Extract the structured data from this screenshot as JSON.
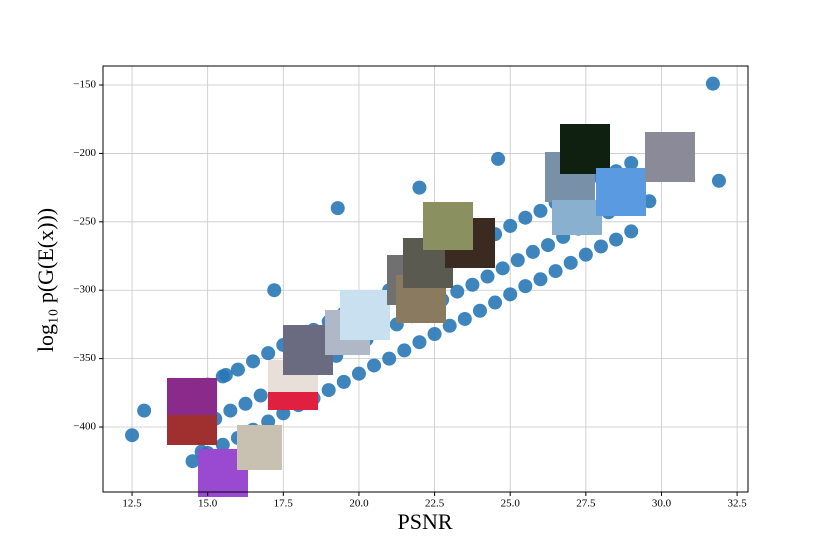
{
  "chart_data": {
    "type": "scatter",
    "x_label": "PSNR",
    "y_label": "log₁₀ p(G(E(x)))",
    "color": "#2878b5",
    "grid": true,
    "xlim": [
      11.54,
      32.86
    ],
    "ylim": [
      -447.5,
      -136.1
    ],
    "xticks": [
      12.5,
      {
        "value": 15,
        "label": "15.0"
      },
      17.5,
      {
        "value": 20,
        "label": "20.0"
      },
      22.5,
      {
        "value": 25,
        "label": "25.0"
      },
      27.5,
      {
        "value": 30,
        "label": "30.0"
      },
      32.5
    ],
    "yticks": [
      {
        "value": -150,
        "label": "−150"
      },
      {
        "value": -200,
        "label": "−200"
      },
      {
        "value": -250,
        "label": "−250"
      },
      {
        "value": -300,
        "label": "−300"
      },
      {
        "value": -350,
        "label": "−350"
      },
      {
        "value": -400,
        "label": "−400"
      }
    ],
    "x": [
      14.5,
      14.75,
      14.5,
      15,
      15.25,
      15,
      15.5,
      15.75,
      15.5,
      16,
      16.25,
      16,
      16.5,
      16.75,
      16.5,
      17,
      17.25,
      17,
      17.5,
      17.75,
      17.5,
      18,
      18.25,
      18,
      18.5,
      18.75,
      18.5,
      19,
      19.25,
      19,
      19.5,
      19.75,
      19.5,
      20,
      20.25,
      20,
      20.5,
      20.75,
      20.5,
      21,
      21.25,
      21,
      21.5,
      21.75,
      21.5,
      22,
      22.25,
      22,
      22.5,
      22.75,
      22.5,
      23,
      23.25,
      23,
      23.5,
      23.75,
      23.5,
      24,
      24.25,
      24,
      24.5,
      24.75,
      24.5,
      25,
      25.25,
      25,
      25.5,
      25.75,
      25.5,
      26,
      26.25,
      26,
      26.5,
      26.75,
      26.5,
      27,
      27.25,
      27,
      27.5,
      27.75,
      27.5,
      28,
      28.25,
      28,
      28.5,
      28.75,
      28.5,
      29,
      29.25,
      29,
      12.5,
      12.9,
      31.7,
      31.9,
      24.6,
      19.3,
      14.8,
      15.6,
      17.2,
      22.0,
      29.6
    ],
    "values": [
      -425,
      -400,
      -375,
      -419,
      -394,
      -369,
      -413,
      -388,
      -363,
      -408,
      -383,
      -358,
      -402,
      -377,
      -352,
      -396,
      -371,
      -346,
      -390,
      -365,
      -340,
      -384,
      -359,
      -334,
      -379,
      -354,
      -329,
      -373,
      -348,
      -323,
      -367,
      -342,
      -317,
      -361,
      -336,
      -311,
      -355,
      -330,
      -305,
      -350,
      -325,
      -300,
      -344,
      -319,
      -294,
      -338,
      -313,
      -288,
      -332,
      -307,
      -282,
      -326,
      -301,
      -276,
      -321,
      -296,
      -271,
      -315,
      -290,
      -265,
      -309,
      -284,
      -259,
      -303,
      -278,
      -253,
      -297,
      -272,
      -247,
      -292,
      -267,
      -242,
      -286,
      -261,
      -236,
      -280,
      -255,
      -230,
      -274,
      -249,
      -224,
      -268,
      -243,
      -218,
      -263,
      -238,
      -213,
      -257,
      -232,
      -207,
      -406,
      -388,
      -149,
      -220,
      -204,
      -240,
      -418,
      -362,
      -300,
      -225,
      -235
    ]
  }
}
